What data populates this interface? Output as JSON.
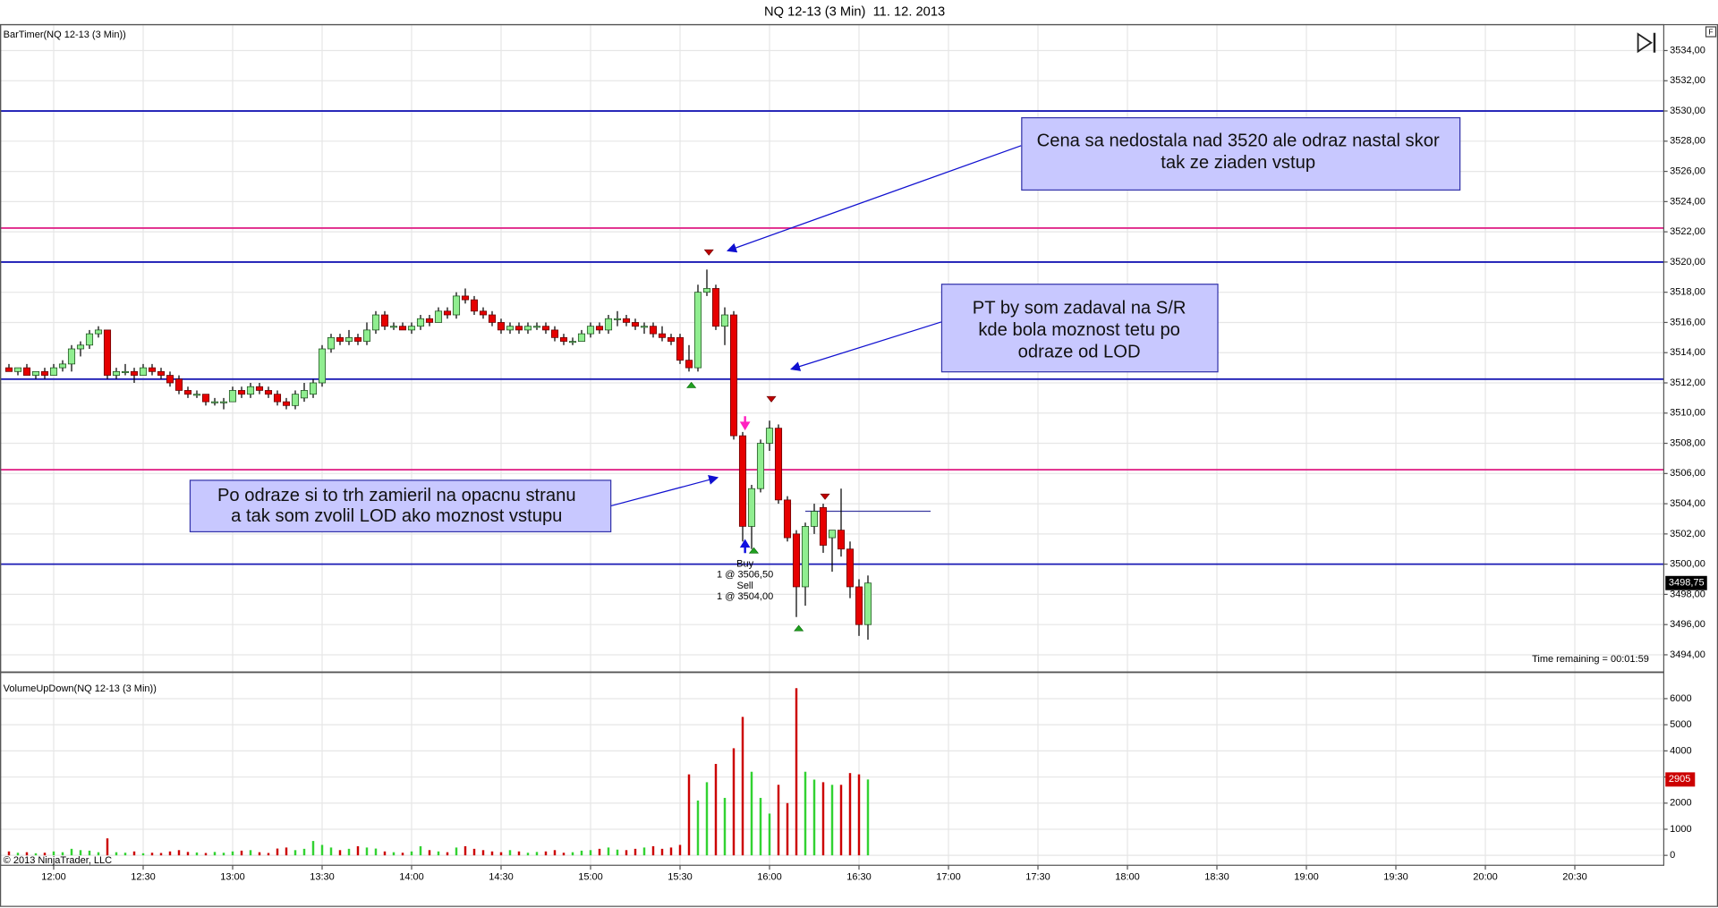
{
  "window": {
    "title": "NQ 12-13 (3 Min)  11. 12. 2013",
    "button": "F",
    "footer": "© 2013 NinjaTrader, LLC"
  },
  "xaxis": {
    "xlim": [
      "11:42",
      "21:00"
    ],
    "xticks": [
      "12:00",
      "12:30",
      "13:00",
      "13:30",
      "14:00",
      "14:30",
      "15:00",
      "15:30",
      "16:00",
      "16:30",
      "17:00",
      "17:30",
      "18:00",
      "18:30",
      "19:00",
      "19:30",
      "20:00",
      "20:30"
    ],
    "grid": true
  },
  "chart_data": [
    {
      "type": "candlestick",
      "label": "BarTimer(NQ 12-13 (3 Min))",
      "time_remaining": "Time remaining = 00:01:59",
      "up_color": "#90ee90",
      "down_color": "#e60000",
      "wick_color": "#000000",
      "ylim": [
        3492.9,
        3535.75
      ],
      "yticks": [
        {
          "value": 3494,
          "label": "3494,00"
        },
        {
          "value": 3496,
          "label": "3496,00"
        },
        {
          "value": 3498,
          "label": "3498,00"
        },
        {
          "value": 3500,
          "label": "3500,00"
        },
        {
          "value": 3502,
          "label": "3502,00"
        },
        {
          "value": 3504,
          "label": "3504,00"
        },
        {
          "value": 3506,
          "label": "3506,00"
        },
        {
          "value": 3508,
          "label": "3508,00"
        },
        {
          "value": 3510,
          "label": "3510,00"
        },
        {
          "value": 3512,
          "label": "3512,00"
        },
        {
          "value": 3514,
          "label": "3514,00"
        },
        {
          "value": 3516,
          "label": "3516,00"
        },
        {
          "value": 3518,
          "label": "3518,00"
        },
        {
          "value": 3520,
          "label": "3520,00"
        },
        {
          "value": 3522,
          "label": "3522,00"
        },
        {
          "value": 3524,
          "label": "3524,00"
        },
        {
          "value": 3526,
          "label": "3526,00"
        },
        {
          "value": 3528,
          "label": "3528,00"
        },
        {
          "value": 3530,
          "label": "3530,00"
        },
        {
          "value": 3532,
          "label": "3532,00"
        },
        {
          "value": 3534,
          "label": "3534,00"
        }
      ],
      "grid": true,
      "last_price": {
        "value": 3498.75,
        "label": "3498,75"
      },
      "levels": [
        {
          "value": 3530,
          "color": "#1a1ab4"
        },
        {
          "value": 3522.25,
          "color": "#e0288a"
        },
        {
          "value": 3520,
          "color": "#1a1ab4"
        },
        {
          "value": 3512.25,
          "color": "#1a1ab4"
        },
        {
          "value": 3506.25,
          "color": "#e0288a"
        },
        {
          "value": 3500,
          "color": "#1a1ab4"
        },
        {
          "value": 3503.5,
          "color": "#3a3aa0",
          "start": "16:12",
          "end": "16:54"
        }
      ],
      "x": [
        "11:45",
        "11:48",
        "11:51",
        "11:54",
        "11:57",
        "12:00",
        "12:03",
        "12:06",
        "12:09",
        "12:12",
        "12:15",
        "12:18",
        "12:21",
        "12:24",
        "12:27",
        "12:30",
        "12:33",
        "12:36",
        "12:39",
        "12:42",
        "12:45",
        "12:48",
        "12:51",
        "12:54",
        "12:57",
        "13:00",
        "13:03",
        "13:06",
        "13:09",
        "13:12",
        "13:15",
        "13:18",
        "13:21",
        "13:24",
        "13:27",
        "13:30",
        "13:33",
        "13:36",
        "13:39",
        "13:42",
        "13:45",
        "13:48",
        "13:51",
        "13:54",
        "13:57",
        "14:00",
        "14:03",
        "14:06",
        "14:09",
        "14:12",
        "14:15",
        "14:18",
        "14:21",
        "14:24",
        "14:27",
        "14:30",
        "14:33",
        "14:36",
        "14:39",
        "14:42",
        "14:45",
        "14:48",
        "14:51",
        "14:54",
        "14:57",
        "15:00",
        "15:03",
        "15:06",
        "15:09",
        "15:12",
        "15:15",
        "15:18",
        "15:21",
        "15:24",
        "15:27",
        "15:30",
        "15:33",
        "15:36",
        "15:39",
        "15:42",
        "15:45",
        "15:48",
        "15:51",
        "15:54",
        "15:57",
        "16:00",
        "16:03",
        "16:06",
        "16:09",
        "16:12",
        "16:15",
        "16:18",
        "16:21",
        "16:24",
        "16:27",
        "16:30",
        "16:33"
      ],
      "ohlc": [
        [
          3513,
          3513.25,
          3512.75,
          3512.75
        ],
        [
          3512.75,
          3513,
          3512.5,
          3513
        ],
        [
          3513,
          3513.25,
          3512.5,
          3512.5
        ],
        [
          3512.5,
          3512.75,
          3512.25,
          3512.75
        ],
        [
          3512.75,
          3513,
          3512.25,
          3512.5
        ],
        [
          3512.5,
          3513.25,
          3512.5,
          3513
        ],
        [
          3513,
          3513.5,
          3512.75,
          3513.25
        ],
        [
          3513.25,
          3514.5,
          3512.75,
          3514.25
        ],
        [
          3514.25,
          3514.75,
          3513.75,
          3514.5
        ],
        [
          3514.5,
          3515.5,
          3514.25,
          3515.25
        ],
        [
          3515.25,
          3515.75,
          3515,
          3515.5
        ],
        [
          3515.5,
          3515.5,
          3512.25,
          3512.5
        ],
        [
          3512.5,
          3513,
          3512.25,
          3512.75
        ],
        [
          3512.75,
          3513.25,
          3512.5,
          3512.75
        ],
        [
          3512.75,
          3513,
          3512,
          3512.5
        ],
        [
          3512.5,
          3513.25,
          3512.5,
          3513
        ],
        [
          3513,
          3513.25,
          3512.5,
          3512.75
        ],
        [
          3512.75,
          3513,
          3512.25,
          3512.5
        ],
        [
          3512.5,
          3512.75,
          3511.75,
          3512
        ],
        [
          3512.25,
          3512.5,
          3511.25,
          3511.5
        ],
        [
          3511.5,
          3511.75,
          3511,
          3511.25
        ],
        [
          3511.25,
          3511.5,
          3511,
          3511.25
        ],
        [
          3511.25,
          3511.25,
          3510.5,
          3510.75
        ],
        [
          3510.75,
          3511,
          3510.5,
          3510.75
        ],
        [
          3510.75,
          3511,
          3510.25,
          3510.75
        ],
        [
          3510.75,
          3511.75,
          3510.75,
          3511.5
        ],
        [
          3511.5,
          3511.75,
          3511,
          3511.25
        ],
        [
          3511.25,
          3512,
          3511,
          3511.75
        ],
        [
          3511.75,
          3512,
          3511.25,
          3511.5
        ],
        [
          3511.5,
          3511.75,
          3511,
          3511.25
        ],
        [
          3511.25,
          3511.5,
          3510.5,
          3510.75
        ],
        [
          3510.75,
          3511,
          3510.25,
          3510.5
        ],
        [
          3510.5,
          3511.5,
          3510.25,
          3511.25
        ],
        [
          3511,
          3512,
          3510.75,
          3511.5
        ],
        [
          3511.25,
          3512.25,
          3511,
          3512
        ],
        [
          3512,
          3514.5,
          3511.75,
          3514.25
        ],
        [
          3514.25,
          3515.25,
          3514,
          3515
        ],
        [
          3515,
          3515.25,
          3514.5,
          3514.75
        ],
        [
          3514.75,
          3515.5,
          3514.5,
          3515
        ],
        [
          3515,
          3515.25,
          3514.5,
          3514.75
        ],
        [
          3514.75,
          3516,
          3514.5,
          3515.5
        ],
        [
          3515.5,
          3516.75,
          3515.25,
          3516.5
        ],
        [
          3516.5,
          3516.75,
          3515.5,
          3515.75
        ],
        [
          3515.75,
          3516,
          3515.5,
          3515.75
        ],
        [
          3515.75,
          3516,
          3515.5,
          3515.5
        ],
        [
          3515.5,
          3516,
          3515.25,
          3515.75
        ],
        [
          3515.75,
          3516.5,
          3515.5,
          3516.25
        ],
        [
          3516.25,
          3516.5,
          3515.75,
          3516
        ],
        [
          3516,
          3517,
          3516,
          3516.75
        ],
        [
          3516.75,
          3517,
          3516.25,
          3516.5
        ],
        [
          3516.5,
          3518,
          3516.25,
          3517.75
        ],
        [
          3517.75,
          3518.25,
          3517.25,
          3517.5
        ],
        [
          3517.5,
          3517.75,
          3516.5,
          3516.75
        ],
        [
          3516.75,
          3517,
          3516.25,
          3516.5
        ],
        [
          3516.5,
          3516.75,
          3515.75,
          3516
        ],
        [
          3516,
          3516.25,
          3515.25,
          3515.5
        ],
        [
          3515.5,
          3516,
          3515.25,
          3515.75
        ],
        [
          3515.75,
          3516,
          3515.25,
          3515.5
        ],
        [
          3515.5,
          3516,
          3515.25,
          3515.75
        ],
        [
          3515.75,
          3516,
          3515.5,
          3515.75
        ],
        [
          3515.75,
          3516,
          3515.25,
          3515.5
        ],
        [
          3515.5,
          3515.75,
          3514.75,
          3515
        ],
        [
          3515,
          3515.25,
          3514.5,
          3514.75
        ],
        [
          3514.75,
          3515,
          3514.5,
          3514.75
        ],
        [
          3514.75,
          3515.5,
          3514.75,
          3515.25
        ],
        [
          3515.25,
          3516,
          3515,
          3515.75
        ],
        [
          3515.75,
          3516,
          3515.25,
          3515.5
        ],
        [
          3515.5,
          3516.5,
          3515.25,
          3516.25
        ],
        [
          3516.25,
          3516.75,
          3515.75,
          3516.25
        ],
        [
          3516.25,
          3516.5,
          3515.75,
          3516
        ],
        [
          3516,
          3516.25,
          3515.5,
          3515.75
        ],
        [
          3515.75,
          3516,
          3515.25,
          3515.75
        ],
        [
          3515.75,
          3516,
          3515,
          3515.25
        ],
        [
          3515.25,
          3515.75,
          3514.75,
          3515
        ],
        [
          3515,
          3515.25,
          3514.5,
          3514.75
        ],
        [
          3515,
          3515.25,
          3513.25,
          3513.5
        ],
        [
          3513.5,
          3514.5,
          3512.75,
          3513
        ],
        [
          3513,
          3518.5,
          3512.75,
          3518
        ],
        [
          3518,
          3519.5,
          3517.75,
          3518.25
        ],
        [
          3518.25,
          3518.5,
          3515.5,
          3515.75
        ],
        [
          3515.75,
          3517,
          3514.5,
          3516.5
        ],
        [
          3516.5,
          3516.75,
          3508.25,
          3508.5
        ],
        [
          3508.5,
          3508.75,
          3501.5,
          3502.5
        ],
        [
          3502.5,
          3505.25,
          3501,
          3505
        ],
        [
          3505,
          3508.25,
          3504.75,
          3508
        ],
        [
          3508,
          3509.5,
          3507.5,
          3509
        ],
        [
          3509,
          3509.25,
          3504,
          3504.25
        ],
        [
          3504.25,
          3504.5,
          3501.5,
          3501.75
        ],
        [
          3502,
          3502.25,
          3496.5,
          3498.5
        ],
        [
          3498.5,
          3502.75,
          3497.25,
          3502.5
        ],
        [
          3502.5,
          3504,
          3502,
          3503.5
        ],
        [
          3503.75,
          3504,
          3500.75,
          3501.25
        ],
        [
          3501.75,
          3502.25,
          3499.5,
          3502.25
        ],
        [
          3502.25,
          3505,
          3500.5,
          3501
        ],
        [
          3501,
          3501.5,
          3497.75,
          3498.5
        ],
        [
          3498.5,
          3499,
          3495.25,
          3496
        ],
        [
          3496,
          3499.25,
          3495,
          3498.75
        ]
      ]
    },
    {
      "type": "bar",
      "label": "VolumeUpDown(NQ 12-13 (3 Min))",
      "up_color": "#32d232",
      "down_color": "#cc0000",
      "ylim": [
        -380,
        7000
      ],
      "yticks": [
        0,
        1000,
        2000,
        3000,
        4000,
        5000,
        6000
      ],
      "grid": true,
      "last_value": 2905,
      "values": [
        150,
        100,
        120,
        80,
        100,
        150,
        120,
        250,
        200,
        180,
        120,
        650,
        120,
        100,
        150,
        80,
        100,
        90,
        150,
        200,
        130,
        110,
        90,
        130,
        100,
        150,
        180,
        200,
        120,
        90,
        260,
        300,
        200,
        250,
        550,
        400,
        300,
        200,
        250,
        350,
        300,
        260,
        150,
        120,
        100,
        150,
        350,
        200,
        150,
        120,
        300,
        350,
        250,
        200,
        150,
        120,
        200,
        150,
        100,
        130,
        150,
        200,
        100,
        120,
        180,
        200,
        250,
        300,
        220,
        200,
        250,
        300,
        350,
        250,
        300,
        400,
        3100,
        2100,
        2800,
        3500,
        2200,
        4100,
        5300,
        3200,
        2200,
        1600,
        2700,
        2000,
        6400,
        3200,
        2900,
        2800,
        2700,
        2700,
        3150,
        3100,
        2905
      ]
    }
  ],
  "annotations": [
    {
      "lines": [
        "Cena sa nedostala nad 3520 ale odraz nastal skor",
        "tak ze ziaden vstup"
      ]
    },
    {
      "lines": [
        "PT by som zadaval na S/R",
        "kde bola moznost tetu po",
        "odraze od LOD"
      ]
    },
    {
      "lines": [
        "Po odraze si to trh zamieril na opacnu stranu",
        "a tak som zvolil LOD ako moznost vstupu"
      ]
    }
  ],
  "trade": {
    "lines": [
      "Buy",
      "1 @ 3506,50",
      "Sell",
      "1 @ 3504,00"
    ]
  }
}
